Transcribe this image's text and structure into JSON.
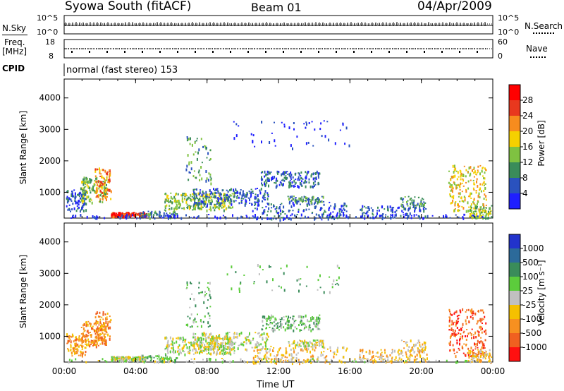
{
  "header": {
    "title": "Syowa South (fitACF)",
    "beam": "Beam 01",
    "date": "04/Apr/2009"
  },
  "aux": {
    "nsky_label": "N.Sky",
    "nsearch_label": "N.Search",
    "nsky_top": "10^5",
    "nsky_bot": "10^0",
    "nsearch_top": "10^5",
    "nsearch_bot": "10^0",
    "freq_label1": "Freq.",
    "freq_label2": "[MHz]",
    "freq_top": "18",
    "freq_bot": "8",
    "nave_label": "Nave",
    "nave_top": "60",
    "nave_bot": "0",
    "cpid_label": "CPID",
    "cpid_text": "normal (fast stereo) 153"
  },
  "chart_data": [
    {
      "type": "heatmap",
      "name": "power",
      "ylabel": "Slant Range [km]",
      "ylim": [
        180,
        4600
      ],
      "yticks": [
        "1000",
        "2000",
        "3000",
        "4000"
      ],
      "colorbar_label": "Power [dB]",
      "colorbar_ticks": [
        "4",
        "8",
        "12",
        "16",
        "20",
        "24",
        "28"
      ],
      "colorbar_colors": [
        "#1f1fff",
        "#2a52be",
        "#3a8c5a",
        "#7fc241",
        "#f5d000",
        "#f78c1e",
        "#e8381e",
        "#ff0000"
      ]
    },
    {
      "type": "heatmap",
      "name": "velocity",
      "ylabel": "Slant Range [km]",
      "ylim": [
        180,
        4600
      ],
      "yticks": [
        "1000",
        "2000",
        "3000",
        "4000"
      ],
      "xlabel": "Time UT",
      "xticks": [
        "00:00",
        "04:00",
        "08:00",
        "12:00",
        "16:00",
        "20:00",
        "00:00"
      ],
      "colorbar_label": "Velocity [m s⁻¹]",
      "colorbar_ticks": [
        "1000",
        "500",
        "100",
        "25",
        "-25",
        "-100",
        "-500",
        "-1000"
      ],
      "colorbar_colors": [
        "#2233cc",
        "#2c6a9a",
        "#3a8c5a",
        "#5ccc3c",
        "#c0c0c0",
        "#f5c000",
        "#f79020",
        "#f06020",
        "#ff1010"
      ]
    }
  ]
}
